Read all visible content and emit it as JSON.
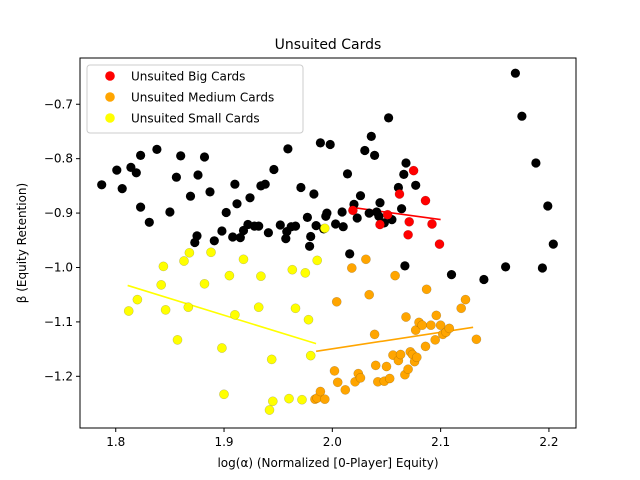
{
  "chart_data": {
    "type": "scatter",
    "title": "Unsuited Cards",
    "xlabel": "log(α) (Normalized [0-Player] Equity)",
    "ylabel": "β (Equity Retention)",
    "xlim": [
      1.767,
      2.225
    ],
    "ylim": [
      -1.295,
      -0.615
    ],
    "xticks": [
      1.8,
      1.9,
      2.0,
      2.1,
      2.2
    ],
    "xtick_labels": [
      "1.8",
      "1.9",
      "2.0",
      "2.1",
      "2.2"
    ],
    "yticks": [
      -1.2,
      -1.1,
      -1.0,
      -0.9,
      -0.8,
      -0.7
    ],
    "ytick_labels": [
      "−1.2",
      "−1.1",
      "−1.0",
      "−0.9",
      "−0.8",
      "−0.7"
    ],
    "grid": false,
    "legend_position": "top-left",
    "series": [
      {
        "color": "#000000",
        "points": [
          [
            1.787,
            -0.848
          ],
          [
            1.801,
            -0.821
          ],
          [
            1.806,
            -0.855
          ],
          [
            1.814,
            -0.816
          ],
          [
            1.819,
            -0.826
          ],
          [
            1.823,
            -0.889
          ],
          [
            1.823,
            -0.794
          ],
          [
            1.831,
            -0.917
          ],
          [
            1.838,
            -0.783
          ],
          [
            1.85,
            -0.898
          ],
          [
            1.856,
            -0.834
          ],
          [
            1.86,
            -0.795
          ],
          [
            1.869,
            -0.869
          ],
          [
            1.873,
            -0.954
          ],
          [
            1.875,
            -0.942
          ],
          [
            1.876,
            -0.83
          ],
          [
            1.882,
            -0.797
          ],
          [
            1.887,
            -0.861
          ],
          [
            1.891,
            -0.951
          ],
          [
            1.898,
            -0.933
          ],
          [
            1.902,
            -0.899
          ],
          [
            1.908,
            -0.944
          ],
          [
            1.91,
            -0.847
          ],
          [
            1.912,
            -0.883
          ],
          [
            1.915,
            -0.945
          ],
          [
            1.918,
            -0.932
          ],
          [
            1.922,
            -0.921
          ],
          [
            1.924,
            -0.872
          ],
          [
            1.928,
            -0.924
          ],
          [
            1.932,
            -0.924
          ],
          [
            1.934,
            -0.85
          ],
          [
            1.938,
            -0.847
          ],
          [
            1.941,
            -0.936
          ],
          [
            1.946,
            -0.82
          ],
          [
            1.952,
            -0.922
          ],
          [
            1.957,
            -0.947
          ],
          [
            1.958,
            -0.934
          ],
          [
            1.959,
            -0.782
          ],
          [
            1.962,
            -0.925
          ],
          [
            1.966,
            -0.924
          ],
          [
            1.971,
            -0.853
          ],
          [
            1.977,
            -0.908
          ],
          [
            1.979,
            -0.961
          ],
          [
            1.98,
            -0.943
          ],
          [
            1.983,
            -0.865
          ],
          [
            1.985,
            -0.923
          ],
          [
            1.989,
            -0.771
          ],
          [
            1.992,
            -0.929
          ],
          [
            1.994,
            -0.906
          ],
          [
            1.995,
            -0.9
          ],
          [
            1.998,
            -0.774
          ],
          [
            2.003,
            -0.92
          ],
          [
            2.009,
            -0.898
          ],
          [
            2.01,
            -0.925
          ],
          [
            2.014,
            -0.828
          ],
          [
            2.016,
            -0.975
          ],
          [
            2.02,
            -0.884
          ],
          [
            2.023,
            -0.909
          ],
          [
            2.026,
            -0.868
          ],
          [
            2.03,
            -0.785
          ],
          [
            2.034,
            -0.9
          ],
          [
            2.036,
            -0.759
          ],
          [
            2.039,
            -0.794
          ],
          [
            2.041,
            -0.898
          ],
          [
            2.043,
            -0.906
          ],
          [
            2.044,
            -0.881
          ],
          [
            2.048,
            -0.918
          ],
          [
            2.052,
            -0.725
          ],
          [
            2.055,
            -0.912
          ],
          [
            2.061,
            -0.853
          ],
          [
            2.064,
            -0.892
          ],
          [
            2.066,
            -0.829
          ],
          [
            2.067,
            -0.997
          ],
          [
            2.068,
            -0.808
          ],
          [
            2.077,
            -0.849
          ],
          [
            2.11,
            -1.013
          ],
          [
            2.14,
            -1.022
          ],
          [
            2.16,
            -0.999
          ],
          [
            2.169,
            -0.643
          ],
          [
            2.175,
            -0.722
          ],
          [
            2.188,
            -0.808
          ],
          [
            2.194,
            -1.001
          ],
          [
            2.199,
            -0.887
          ],
          [
            2.204,
            -0.957
          ]
        ]
      },
      {
        "name": "Unsuited Big Cards",
        "color": "#ff0000",
        "points": [
          [
            2.019,
            -0.895
          ],
          [
            2.044,
            -0.921
          ],
          [
            2.051,
            -0.903
          ],
          [
            2.062,
            -0.865
          ],
          [
            2.07,
            -0.94
          ],
          [
            2.071,
            -0.916
          ],
          [
            2.075,
            -0.822
          ],
          [
            2.086,
            -0.877
          ],
          [
            2.092,
            -0.92
          ],
          [
            2.099,
            -0.957
          ]
        ],
        "trend": [
          [
            2.016,
            -0.889
          ],
          [
            2.1,
            -0.912
          ]
        ]
      },
      {
        "name": "Unsuited Medium Cards",
        "color": "#ffa500",
        "points": [
          [
            1.984,
            -1.242
          ],
          [
            1.986,
            -1.24
          ],
          [
            1.989,
            -1.228
          ],
          [
            1.993,
            -1.242
          ],
          [
            2.002,
            -1.19
          ],
          [
            2.004,
            -1.063
          ],
          [
            2.005,
            -1.211
          ],
          [
            2.012,
            -1.225
          ],
          [
            2.018,
            -1.001
          ],
          [
            2.021,
            -1.21
          ],
          [
            2.024,
            -1.195
          ],
          [
            2.026,
            -1.203
          ],
          [
            2.031,
            -0.985
          ],
          [
            2.034,
            -1.05
          ],
          [
            2.039,
            -1.123
          ],
          [
            2.04,
            -1.18
          ],
          [
            2.042,
            -1.21
          ],
          [
            2.048,
            -1.209
          ],
          [
            2.05,
            -1.182
          ],
          [
            2.053,
            -1.204
          ],
          [
            2.056,
            -1.161
          ],
          [
            2.058,
            -1.015
          ],
          [
            2.061,
            -1.171
          ],
          [
            2.063,
            -1.16
          ],
          [
            2.067,
            -1.197
          ],
          [
            2.068,
            -1.091
          ],
          [
            2.07,
            -1.187
          ],
          [
            2.072,
            -1.155
          ],
          [
            2.074,
            -1.16
          ],
          [
            2.076,
            -1.173
          ],
          [
            2.077,
            -1.115
          ],
          [
            2.078,
            -1.165
          ],
          [
            2.08,
            -1.101
          ],
          [
            2.083,
            -1.106
          ],
          [
            2.086,
            -1.145
          ],
          [
            2.087,
            -1.04
          ],
          [
            2.091,
            -1.106
          ],
          [
            2.095,
            -1.133
          ],
          [
            2.096,
            -1.088
          ],
          [
            2.1,
            -1.106
          ],
          [
            2.102,
            -1.123
          ],
          [
            2.105,
            -1.119
          ],
          [
            2.108,
            -1.112
          ],
          [
            2.119,
            -1.075
          ],
          [
            2.123,
            -1.059
          ],
          [
            2.133,
            -1.132
          ]
        ],
        "trend": [
          [
            1.985,
            -1.154
          ],
          [
            2.13,
            -1.11
          ]
        ]
      },
      {
        "name": "Unsuited Small Cards",
        "color": "#ffff00",
        "points": [
          [
            1.812,
            -1.08
          ],
          [
            1.82,
            -1.059
          ],
          [
            1.842,
            -1.032
          ],
          [
            1.844,
            -0.998
          ],
          [
            1.846,
            -1.078
          ],
          [
            1.857,
            -1.133
          ],
          [
            1.863,
            -0.988
          ],
          [
            1.867,
            -1.073
          ],
          [
            1.868,
            -0.973
          ],
          [
            1.882,
            -1.03
          ],
          [
            1.888,
            -0.972
          ],
          [
            1.898,
            -1.148
          ],
          [
            1.9,
            -1.233
          ],
          [
            1.905,
            -1.015
          ],
          [
            1.91,
            -1.087
          ],
          [
            1.918,
            -0.985
          ],
          [
            1.932,
            -1.073
          ],
          [
            1.934,
            -1.016
          ],
          [
            1.942,
            -1.262
          ],
          [
            1.944,
            -1.169
          ],
          [
            1.945,
            -1.246
          ],
          [
            1.96,
            -1.241
          ],
          [
            1.963,
            -1.004
          ],
          [
            1.966,
            -1.075
          ],
          [
            1.972,
            -1.243
          ],
          [
            1.975,
            -1.01
          ],
          [
            1.978,
            -1.096
          ],
          [
            1.98,
            -1.162
          ],
          [
            1.986,
            -0.987
          ],
          [
            1.993,
            -0.928
          ]
        ],
        "trend": [
          [
            1.811,
            -1.033
          ],
          [
            1.985,
            -1.14
          ]
        ]
      }
    ]
  }
}
